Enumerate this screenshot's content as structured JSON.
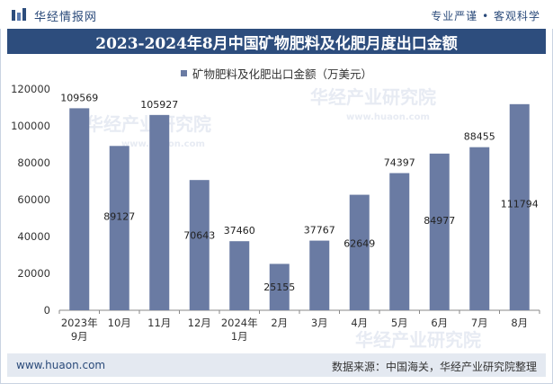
{
  "header": {
    "logo_text": "华经情报网",
    "slogan": "专业严谨 • 客观科学"
  },
  "chart_data": {
    "type": "bar",
    "title": "2023-2024年8月中国矿物肥料及化肥月度出口金额",
    "categories": [
      "2023年\n9月",
      "10月",
      "11月",
      "12月",
      "2024年\n1月",
      "2月",
      "3月",
      "4月",
      "5月",
      "6月",
      "7月",
      "8月"
    ],
    "series": [
      {
        "name": "矿物肥料及化肥出口金额（万美元）",
        "values": [
          109569,
          89127,
          105927,
          70643,
          37460,
          25155,
          37767,
          62649,
          74397,
          84977,
          88455,
          111794
        ]
      }
    ],
    "ylim": [
      0,
      120000
    ],
    "yticks": [
      0,
      20000,
      40000,
      60000,
      80000,
      100000,
      120000
    ],
    "legend_position": "top-center",
    "bar_color": "#6a7ba3",
    "grid": false
  },
  "watermarks": [
    "华经产业研究院",
    "www.huaon.com"
  ],
  "footer": {
    "website": "www.huaon.com",
    "source": "数据来源：中国海关，华经产业研究院整理"
  }
}
